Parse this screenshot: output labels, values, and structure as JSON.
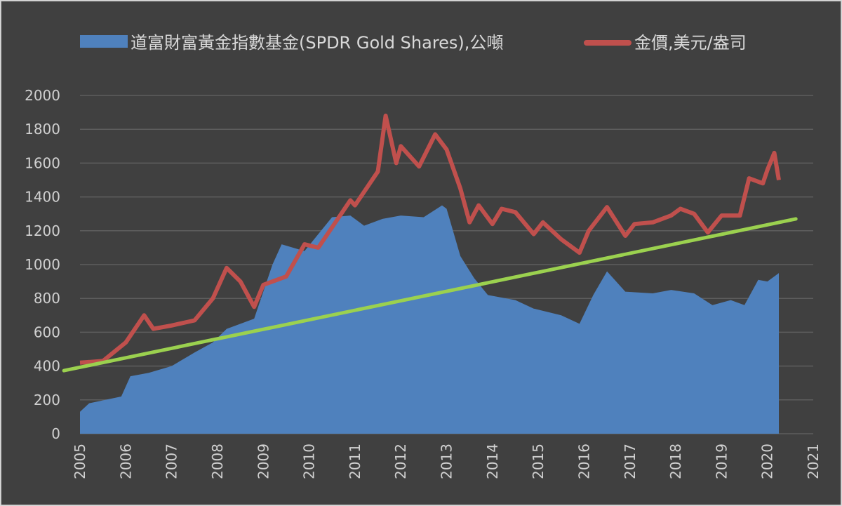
{
  "chart_data": {
    "type": "area+line",
    "title": "",
    "xlabel": "",
    "ylabel": "",
    "xlim": [
      2005,
      2021
    ],
    "ylim": [
      0,
      2000
    ],
    "y_ticks": [
      0,
      200,
      400,
      600,
      800,
      1000,
      1200,
      1400,
      1600,
      1800,
      2000
    ],
    "x_ticks": [
      "2005",
      "2006",
      "2007",
      "2008",
      "2009",
      "2010",
      "2011",
      "2012",
      "2013",
      "2014",
      "2015",
      "2016",
      "2017",
      "2018",
      "2019",
      "2020",
      "2021"
    ],
    "grid": "horizontal",
    "legend_position": "top",
    "background": "#404040",
    "series": [
      {
        "name": "道富財富黃金指數基金(SPDR Gold Shares),公噸",
        "type": "area",
        "color": "#4f81bd",
        "points": [
          [
            2005.0,
            130
          ],
          [
            2005.2,
            180
          ],
          [
            2005.9,
            220
          ],
          [
            2006.1,
            340
          ],
          [
            2006.5,
            360
          ],
          [
            2007.0,
            400
          ],
          [
            2007.5,
            480
          ],
          [
            2007.9,
            540
          ],
          [
            2008.2,
            620
          ],
          [
            2008.5,
            650
          ],
          [
            2008.8,
            680
          ],
          [
            2009.2,
            1000
          ],
          [
            2009.4,
            1120
          ],
          [
            2009.9,
            1080
          ],
          [
            2010.5,
            1280
          ],
          [
            2010.9,
            1290
          ],
          [
            2011.2,
            1230
          ],
          [
            2011.6,
            1270
          ],
          [
            2012.0,
            1290
          ],
          [
            2012.5,
            1280
          ],
          [
            2012.9,
            1350
          ],
          [
            2013.0,
            1330
          ],
          [
            2013.3,
            1050
          ],
          [
            2013.6,
            920
          ],
          [
            2013.9,
            820
          ],
          [
            2014.5,
            790
          ],
          [
            2014.9,
            740
          ],
          [
            2015.5,
            700
          ],
          [
            2015.9,
            650
          ],
          [
            2016.2,
            820
          ],
          [
            2016.5,
            960
          ],
          [
            2016.9,
            840
          ],
          [
            2017.5,
            830
          ],
          [
            2017.9,
            850
          ],
          [
            2018.4,
            830
          ],
          [
            2018.8,
            760
          ],
          [
            2019.2,
            790
          ],
          [
            2019.5,
            760
          ],
          [
            2019.8,
            910
          ],
          [
            2020.0,
            900
          ],
          [
            2020.25,
            950
          ]
        ]
      },
      {
        "name": "金價,美元/盎司",
        "type": "line",
        "color": "#c0504d",
        "points": [
          [
            2005.0,
            420
          ],
          [
            2005.5,
            430
          ],
          [
            2006.0,
            540
          ],
          [
            2006.4,
            700
          ],
          [
            2006.6,
            620
          ],
          [
            2007.0,
            640
          ],
          [
            2007.5,
            670
          ],
          [
            2007.9,
            800
          ],
          [
            2008.2,
            980
          ],
          [
            2008.5,
            900
          ],
          [
            2008.8,
            750
          ],
          [
            2009.0,
            880
          ],
          [
            2009.5,
            930
          ],
          [
            2009.9,
            1120
          ],
          [
            2010.2,
            1100
          ],
          [
            2010.5,
            1220
          ],
          [
            2010.9,
            1380
          ],
          [
            2011.0,
            1350
          ],
          [
            2011.5,
            1550
          ],
          [
            2011.67,
            1880
          ],
          [
            2011.9,
            1600
          ],
          [
            2012.0,
            1700
          ],
          [
            2012.4,
            1580
          ],
          [
            2012.75,
            1770
          ],
          [
            2013.0,
            1680
          ],
          [
            2013.3,
            1450
          ],
          [
            2013.5,
            1250
          ],
          [
            2013.7,
            1350
          ],
          [
            2014.0,
            1240
          ],
          [
            2014.2,
            1330
          ],
          [
            2014.5,
            1310
          ],
          [
            2014.9,
            1180
          ],
          [
            2015.1,
            1250
          ],
          [
            2015.5,
            1150
          ],
          [
            2015.9,
            1070
          ],
          [
            2016.1,
            1200
          ],
          [
            2016.5,
            1340
          ],
          [
            2016.9,
            1170
          ],
          [
            2017.1,
            1240
          ],
          [
            2017.5,
            1250
          ],
          [
            2017.9,
            1290
          ],
          [
            2018.1,
            1330
          ],
          [
            2018.4,
            1300
          ],
          [
            2018.7,
            1190
          ],
          [
            2019.0,
            1290
          ],
          [
            2019.4,
            1290
          ],
          [
            2019.6,
            1510
          ],
          [
            2019.9,
            1480
          ],
          [
            2020.0,
            1560
          ],
          [
            2020.15,
            1660
          ],
          [
            2020.25,
            1500
          ]
        ]
      },
      {
        "type": "trendline",
        "color": "#9bd14f",
        "points": [
          [
            2004.65,
            373
          ],
          [
            2020.62,
            1270
          ]
        ]
      }
    ]
  }
}
